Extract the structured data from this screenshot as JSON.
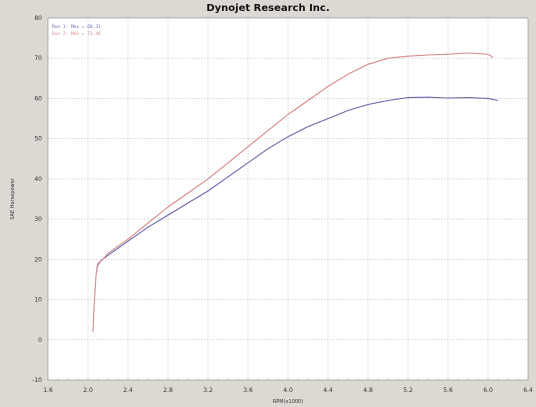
{
  "chart_data": {
    "type": "line",
    "title": "Dynojet Research Inc.",
    "xlabel": "RPM(x1000)",
    "ylabel": "SAE Horsepower",
    "xlim": [
      1.6,
      6.4
    ],
    "ylim": [
      -10,
      80
    ],
    "xticks": [
      "1.6",
      "2.0",
      "2.4",
      "2.8",
      "3.2",
      "3.6",
      "4.0",
      "4.4",
      "4.8",
      "5.2",
      "5.6",
      "6.0",
      "6.4"
    ],
    "yticks": [
      "-10",
      "0",
      "10",
      "20",
      "30",
      "40",
      "50",
      "60",
      "70",
      "80"
    ],
    "grid": true,
    "legend_position": "top-left",
    "colors": {
      "series1": "#6a6ab0",
      "series2": "#d88a8a",
      "grid": "#bdbdbd",
      "plot_bg": "#ffffff"
    },
    "series": [
      {
        "name": "Run 1: Max = 60.31",
        "x": [
          2.09,
          2.09,
          2.12,
          2.2,
          2.4,
          2.6,
          2.8,
          3.0,
          3.2,
          3.4,
          3.6,
          3.8,
          4.0,
          4.2,
          4.4,
          4.6,
          4.8,
          5.0,
          5.2,
          5.4,
          5.6,
          5.8,
          6.0,
          6.1
        ],
        "y": [
          17,
          18,
          19.5,
          21,
          24.5,
          28,
          31,
          34,
          37,
          40.5,
          44,
          47.5,
          50.5,
          53,
          55,
          57,
          58.5,
          59.5,
          60.2,
          60.3,
          60.1,
          60.2,
          60.0,
          59.5
        ]
      },
      {
        "name": "Run 2: Max = 71.46",
        "x": [
          2.05,
          2.06,
          2.08,
          2.1,
          2.15,
          2.2,
          2.4,
          2.6,
          2.8,
          3.0,
          3.2,
          3.4,
          3.6,
          3.8,
          4.0,
          4.2,
          4.4,
          4.6,
          4.8,
          5.0,
          5.2,
          5.4,
          5.6,
          5.8,
          6.0,
          6.05
        ],
        "y": [
          2,
          8,
          16,
          19,
          20,
          21.5,
          25,
          29,
          33,
          36.5,
          40,
          44,
          48,
          52,
          56,
          59.5,
          63,
          66,
          68.5,
          70,
          70.5,
          70.8,
          71,
          71.3,
          71,
          70.2
        ]
      }
    ]
  }
}
